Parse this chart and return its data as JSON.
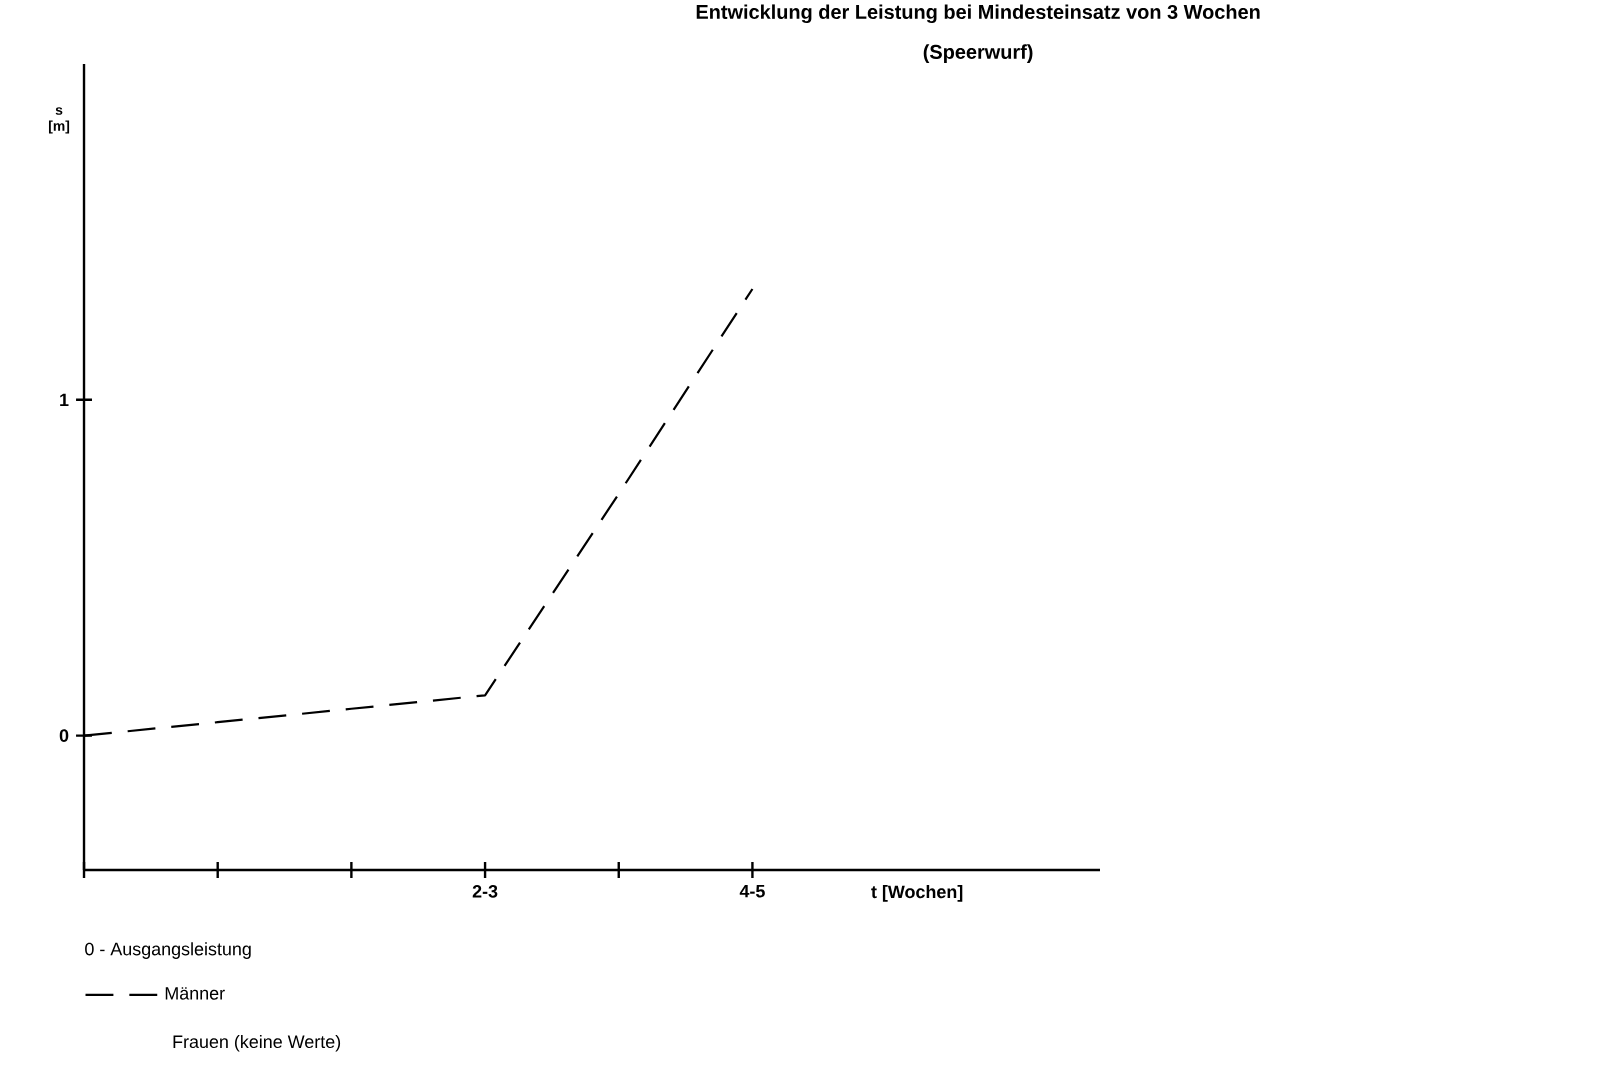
{
  "chart_data": {
    "type": "line",
    "title": "Entwicklung der Leistung bei Mindesteinsatz von 3 Wochen",
    "subtitle": "(Speerwurf)",
    "xlabel": "t  [Wochen]",
    "ylabel": "s [m]",
    "categories": [
      null,
      null,
      null,
      "2-3",
      null,
      "4-5"
    ],
    "series": [
      {
        "name": "Männer",
        "color": "#000000",
        "line_style": "dashed",
        "values": [
          0,
          0.04,
          0.08,
          0.12,
          0.72,
          1.33
        ]
      }
    ],
    "ylim": [
      -0.4,
      2.0
    ],
    "yticks": [
      0,
      1
    ],
    "legend": "bottom left",
    "grid": false,
    "marker": "none",
    "annotations": [
      "0 - Ausgangsleistung",
      "Frauen (keine Werte)"
    ]
  }
}
